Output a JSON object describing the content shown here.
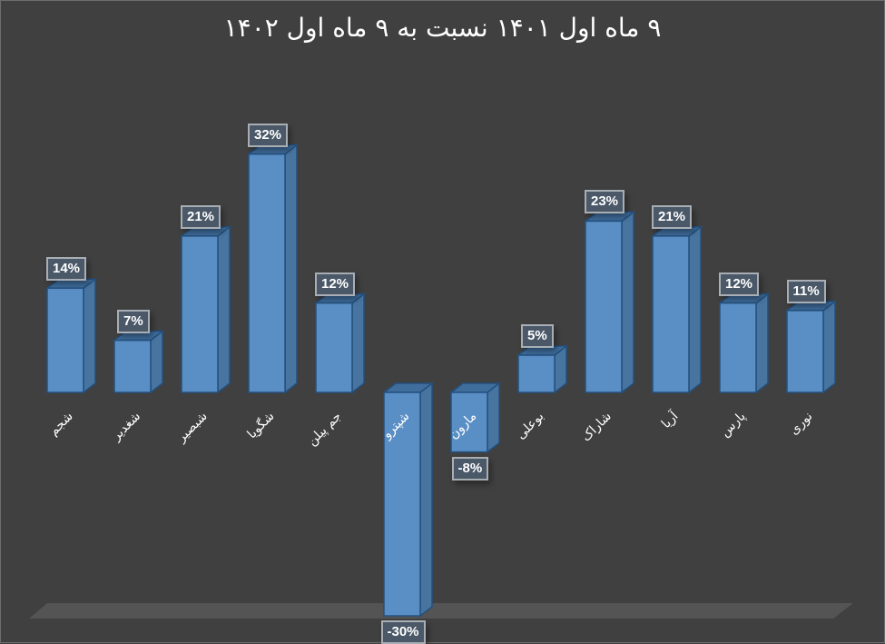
{
  "chart_data": {
    "type": "bar",
    "style": "3d-column",
    "title": "۹ ماه اول ۱۴۰۱ نسبت به ۹ ماه اول ۱۴۰۲",
    "xlabel": "",
    "ylabel": "",
    "grid": false,
    "legend": null,
    "categories": [
      "شجم",
      "شغدیر",
      "شبصیر",
      "شگویا",
      "جم پیلن",
      "شپترو",
      "مارون",
      "بوعلی",
      "شاراک",
      "آریا",
      "پارس",
      "نوری"
    ],
    "values": [
      14,
      7,
      21,
      32,
      12,
      -30,
      -8,
      5,
      23,
      21,
      12,
      11
    ],
    "data_labels": [
      "14%",
      "7%",
      "21%",
      "32%",
      "12%",
      "-30%",
      "-8%",
      "5%",
      "23%",
      "21%",
      "12%",
      "11%"
    ],
    "unit": "%",
    "ylim": [
      -30,
      32
    ]
  },
  "colors": {
    "background": "#404040",
    "bar_front": "#5a8fc6",
    "bar_side": "#4874a0",
    "bar_top": "#3f6d9c",
    "bar_edge": "#24507e",
    "floor": "#545454",
    "label_bg": "#4a5868",
    "label_border": "#a8aeb4"
  }
}
